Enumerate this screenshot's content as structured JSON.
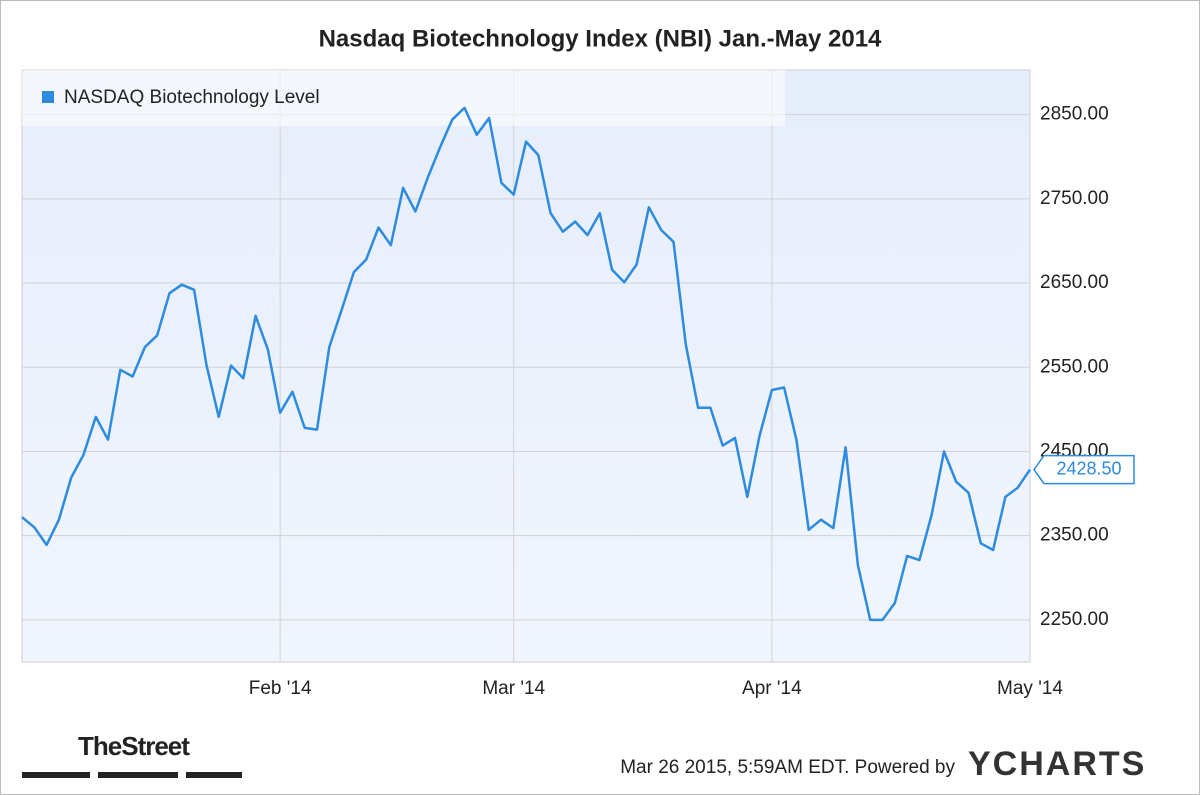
{
  "chart_data": {
    "type": "line",
    "title": "Nasdaq Biotechnology Index (NBI) Jan.-May 2014",
    "categories": [
      null,
      null,
      null,
      null,
      null,
      null,
      null,
      null,
      null,
      null,
      null,
      null,
      null,
      null,
      null,
      null,
      null,
      null,
      null,
      null,
      null,
      "Feb '14",
      null,
      null,
      null,
      null,
      null,
      null,
      null,
      null,
      null,
      null,
      null,
      null,
      null,
      null,
      null,
      null,
      null,
      null,
      "Mar '14",
      null,
      null,
      null,
      null,
      null,
      null,
      null,
      null,
      null,
      null,
      null,
      null,
      null,
      null,
      null,
      null,
      null,
      null,
      null,
      null,
      "Apr '14",
      null,
      null,
      null,
      null,
      null,
      null,
      null,
      null,
      null,
      null,
      null,
      null,
      null,
      null,
      null,
      null,
      null,
      null,
      null,
      null,
      "May '14"
    ],
    "series": [
      {
        "name": "NASDAQ Biotechnology Level",
        "color": "#2d8be0",
        "values": [
          2372,
          2360,
          2339,
          2369,
          2419,
          2446,
          2491,
          2464,
          2547,
          2539,
          2574,
          2588,
          2638,
          2648,
          2642,
          2553,
          2491,
          2552,
          2537,
          2611,
          2571,
          2496,
          2521,
          2478,
          2476,
          2574,
          2618,
          2663,
          2678,
          2716,
          2695,
          2763,
          2735,
          2775,
          2811,
          2844,
          2858,
          2826,
          2846,
          2769,
          2755,
          2818,
          2802,
          2733,
          2711,
          2723,
          2707,
          2733,
          2666,
          2651,
          2672,
          2740,
          2713,
          2699,
          2577,
          2502,
          2502,
          2457,
          2466,
          2396,
          2469,
          2523,
          2526,
          2464,
          2357,
          2369,
          2359,
          2455,
          2315,
          2250,
          2250,
          2270,
          2326,
          2321,
          2375,
          2450,
          2414,
          2401,
          2341,
          2333,
          2396,
          2407,
          2428.5
        ],
        "value_labels": [
          null,
          null,
          null,
          null,
          null,
          null,
          null,
          null,
          null,
          null,
          null,
          null,
          null,
          null,
          null,
          null,
          null,
          null,
          null,
          null,
          null,
          null,
          null,
          null,
          null,
          null,
          null,
          null,
          null,
          null,
          null,
          null,
          null,
          null,
          null,
          null,
          null,
          null,
          null,
          null,
          null,
          null,
          null,
          null,
          null,
          null,
          null,
          null,
          null,
          null,
          null,
          null,
          null,
          null,
          null,
          null,
          null,
          null,
          null,
          null,
          null,
          null,
          null,
          null,
          null,
          null,
          null,
          null,
          null,
          null,
          null,
          null,
          null,
          null,
          null,
          null,
          null,
          null,
          null,
          null,
          null,
          null,
          "2428.50"
        ]
      }
    ],
    "ylim": [
      2200,
      2903
    ],
    "yticks": [
      {
        "value": 2250,
        "label": "2250.00"
      },
      {
        "value": 2350,
        "label": "2350.00"
      },
      {
        "value": 2450,
        "label": "2450.00"
      },
      {
        "value": 2550,
        "label": "2550.00"
      },
      {
        "value": 2650,
        "label": "2650.00"
      },
      {
        "value": 2750,
        "label": "2750.00"
      },
      {
        "value": 2850,
        "label": "2850.00"
      }
    ],
    "grid": true,
    "legend": "top-left",
    "source": "TheStreet",
    "timestamp": "Mar 26 2015, 5:59AM EDT.  Powered by",
    "brand": "YCHARTS"
  }
}
